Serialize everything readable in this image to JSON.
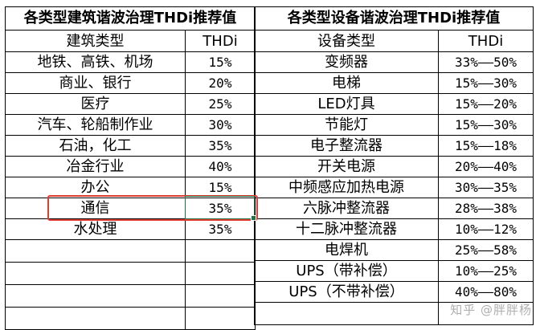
{
  "left_table": {
    "title": "各类型建筑谐波治理THDi推荐值",
    "headers": [
      "建筑类型",
      "THDi"
    ],
    "rows": [
      [
        "地铁、高铁、机场",
        "15%"
      ],
      [
        "商业、银行",
        "20%"
      ],
      [
        "医疗",
        "25%"
      ],
      [
        "汽车、轮船制作业",
        "30%"
      ],
      [
        "石油，化工",
        "35%"
      ],
      [
        "冶金行业",
        "40%"
      ],
      [
        "办公",
        "15%"
      ],
      [
        "通信",
        "35%"
      ],
      [
        "水处理",
        "35%"
      ]
    ]
  },
  "right_table": {
    "title": "各类型设备谐波治理THDi推荐值",
    "headers": [
      "设备类型",
      "THDi"
    ],
    "rows": [
      [
        "变频器",
        "33%——50%"
      ],
      [
        "电梯",
        "15%——30%"
      ],
      [
        "LED灯具",
        "15%——20%"
      ],
      [
        "节能灯",
        "15%——30%"
      ],
      [
        "电子整流器",
        "15%——18%"
      ],
      [
        "开关电源",
        "20%——40%"
      ],
      [
        "中频感应加热电源",
        "30%——35%"
      ],
      [
        "六脉冲整流器",
        "28%——38%"
      ],
      [
        "十二脉冲整流器",
        "10%——12%"
      ],
      [
        "电焊机",
        "25%——58%"
      ],
      [
        "UPS（带补偿）",
        "10%——25%"
      ],
      [
        "UPS（不带补偿）",
        "40%——80%"
      ]
    ]
  },
  "highlight": {
    "row_label": "通信",
    "color": "#e03c31",
    "active_cell_color": "#217346"
  },
  "watermark": {
    "text": "知乎 @胖胖杨"
  }
}
